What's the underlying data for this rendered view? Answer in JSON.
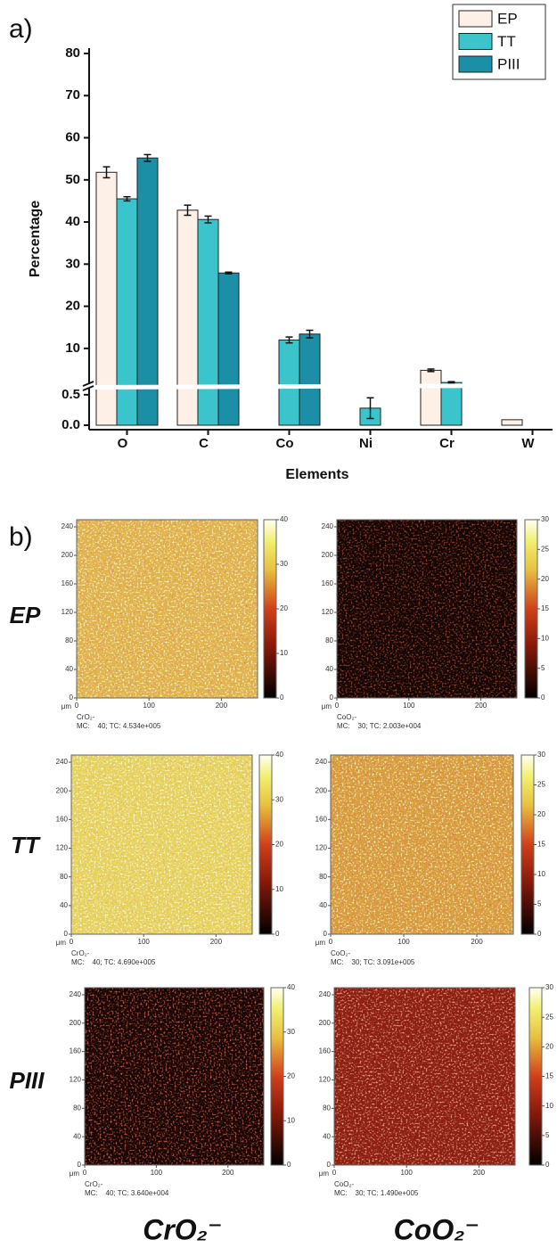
{
  "figure": {
    "panel_labels": [
      "a)",
      "b)"
    ],
    "row_labels": [
      "EP",
      "TT",
      "PIII"
    ],
    "column_labels": [
      "CrO₂⁻",
      "CoO₂⁻"
    ]
  },
  "chart_data": [
    {
      "type": "bar",
      "x_label": "Elements",
      "y_label": "Percentage",
      "categories": [
        "O",
        "C",
        "Co",
        "Ni",
        "Cr",
        "W"
      ],
      "series": [
        {
          "name": "EP",
          "color": "#fdf0e6",
          "values": [
            51.8,
            42.8,
            null,
            null,
            4.8,
            0.09
          ],
          "errors": [
            1.3,
            1.2,
            null,
            null,
            0.3,
            null
          ]
        },
        {
          "name": "TT",
          "color": "#3cc4cc",
          "values": [
            45.5,
            40.6,
            12.0,
            0.28,
            1.9,
            null
          ],
          "errors": [
            0.5,
            0.8,
            0.7,
            0.17,
            0.2,
            null
          ]
        },
        {
          "name": "PIII",
          "color": "#1a8fa6",
          "values": [
            55.2,
            27.9,
            13.4,
            null,
            null,
            null
          ],
          "errors": [
            0.8,
            0.2,
            0.9,
            null,
            null,
            null
          ]
        }
      ],
      "ylim": [
        0,
        80
      ],
      "ybreak": [
        0.6,
        1.5
      ],
      "yticks": [
        {
          "value": 0,
          "label": "0.0"
        },
        0.5,
        10,
        20,
        30,
        40,
        50,
        60,
        70,
        80
      ],
      "legend": "top-right"
    },
    {
      "type": "heatmap",
      "name": "CrO₂-",
      "caption": "MC:    40; TC: 4.534e+005",
      "x_unit": "μm",
      "xlim": [
        0,
        250
      ],
      "ylim": [
        0,
        250
      ],
      "xticks": [
        0,
        100,
        200
      ],
      "yticks": [
        0,
        40,
        80,
        120,
        160,
        200,
        240
      ],
      "clim": [
        0,
        40
      ],
      "cticks": [
        0,
        10,
        20,
        30,
        40
      ],
      "colors": [
        "#e0b448",
        "#c2402a",
        "#f5eb92"
      ]
    },
    {
      "type": "heatmap",
      "name": "CoO₂-",
      "caption": "MC:    30; TC: 2.003e+004",
      "x_unit": "μm",
      "xlim": [
        0,
        250
      ],
      "ylim": [
        0,
        250
      ],
      "xticks": [
        0,
        100,
        200
      ],
      "yticks": [
        0,
        40,
        80,
        120,
        160,
        200,
        240
      ],
      "clim": [
        0,
        30
      ],
      "cticks": [
        0,
        5,
        10,
        15,
        20,
        25,
        30
      ],
      "colors": [
        "#150604",
        "#000000",
        "#5a1008"
      ]
    },
    {
      "type": "heatmap",
      "name": "CrO₂-",
      "caption": "MC:    40; TC: 4.690e+005",
      "x_unit": "μm",
      "xlim": [
        0,
        250
      ],
      "ylim": [
        0,
        250
      ],
      "xticks": [
        0,
        100,
        200
      ],
      "yticks": [
        0,
        40,
        80,
        120,
        160,
        200,
        240
      ],
      "clim": [
        0,
        40
      ],
      "cticks": [
        0,
        10,
        20,
        30,
        40
      ],
      "colors": [
        "#e6d35a",
        "#c8702a",
        "#f8f4b8"
      ]
    },
    {
      "type": "heatmap",
      "name": "CoO₂-",
      "caption": "MC:    30; TC: 3.091e+005",
      "x_unit": "μm",
      "xlim": [
        0,
        250
      ],
      "ylim": [
        0,
        250
      ],
      "xticks": [
        0,
        100,
        200
      ],
      "yticks": [
        0,
        40,
        80,
        120,
        160,
        200,
        240
      ],
      "clim": [
        0,
        30
      ],
      "cticks": [
        0,
        5,
        10,
        15,
        20,
        25,
        30
      ],
      "colors": [
        "#d89c3a",
        "#b0301c",
        "#f2e27a"
      ]
    },
    {
      "type": "heatmap",
      "name": "CrO₂-",
      "caption": "MC:    40; TC: 3.640e+004",
      "x_unit": "μm",
      "xlim": [
        0,
        250
      ],
      "ylim": [
        0,
        250
      ],
      "xticks": [
        0,
        100,
        200
      ],
      "yticks": [
        0,
        40,
        80,
        120,
        160,
        200,
        240
      ],
      "clim": [
        0,
        40
      ],
      "cticks": [
        0,
        10,
        20,
        30,
        40
      ],
      "colors": [
        "#1a0503",
        "#000000",
        "#8a1c10"
      ]
    },
    {
      "type": "heatmap",
      "name": "CoO₂-",
      "caption": "MC:    30; TC: 1.490e+005",
      "x_unit": "μm",
      "xlim": [
        0,
        250
      ],
      "ylim": [
        0,
        250
      ],
      "xticks": [
        0,
        100,
        200
      ],
      "yticks": [
        0,
        40,
        80,
        120,
        160,
        200,
        240
      ],
      "clim": [
        0,
        30
      ],
      "cticks": [
        0,
        5,
        10,
        15,
        20,
        25,
        30
      ],
      "colors": [
        "#8c1c10",
        "#3a0604",
        "#e0603a"
      ]
    }
  ]
}
